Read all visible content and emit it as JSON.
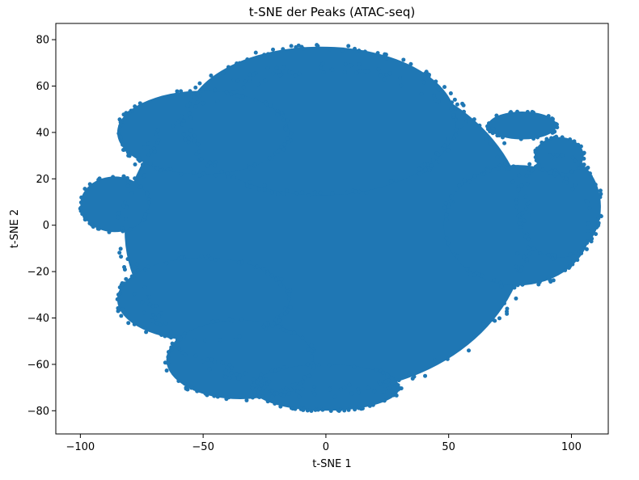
{
  "chart_data": {
    "type": "scatter",
    "title": "t-SNE der Peaks (ATAC-seq)",
    "xlabel": "t-SNE 1",
    "ylabel": "t-SNE 2",
    "xlim": [
      -110,
      115
    ],
    "ylim": [
      -90,
      87
    ],
    "xticks": [
      -100,
      -50,
      0,
      50,
      100
    ],
    "yticks": [
      -80,
      -60,
      -40,
      -20,
      0,
      20,
      40,
      60,
      80
    ],
    "xtick_labels": [
      "−100",
      "−50",
      "0",
      "50",
      "100"
    ],
    "ytick_labels": [
      "−80",
      "−60",
      "−40",
      "−20",
      "0",
      "20",
      "40",
      "60",
      "80"
    ],
    "grid": false,
    "legend": "none",
    "color": "#1f77b4",
    "series": [
      {
        "point_count_note": "dense point cloud",
        "regions": [
          {
            "shape": "ellipse",
            "cx": 0,
            "cy": -2,
            "rx": 82,
            "ry": 70
          },
          {
            "shape": "ellipse",
            "cx": -2,
            "cy": 45,
            "rx": 55,
            "ry": 32
          },
          {
            "shape": "ellipse",
            "cx": -50,
            "cy": 40,
            "rx": 35,
            "ry": 18
          },
          {
            "shape": "ellipse",
            "cx": -86,
            "cy": 9,
            "rx": 14,
            "ry": 12
          },
          {
            "shape": "ellipse",
            "cx": -50,
            "cy": -32,
            "rx": 35,
            "ry": 18
          },
          {
            "shape": "ellipse",
            "cx": -35,
            "cy": -58,
            "rx": 30,
            "ry": 17
          },
          {
            "shape": "ellipse",
            "cx": 0,
            "cy": -70,
            "rx": 30,
            "ry": 10
          },
          {
            "shape": "ellipse",
            "cx": 78,
            "cy": 0,
            "rx": 30,
            "ry": 26
          },
          {
            "shape": "ellipse",
            "cx": 95,
            "cy": 8,
            "rx": 17,
            "ry": 22
          },
          {
            "shape": "ellipse",
            "cx": 80,
            "cy": 43,
            "rx": 14,
            "ry": 6
          },
          {
            "shape": "ellipse",
            "cx": 95,
            "cy": 30,
            "rx": 10,
            "ry": 8
          }
        ]
      }
    ]
  }
}
